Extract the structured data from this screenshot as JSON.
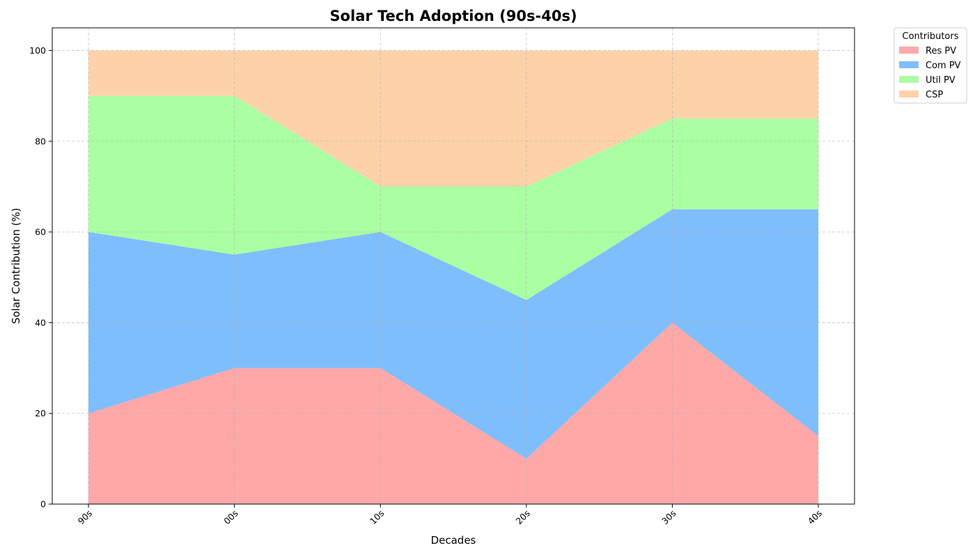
{
  "chart_data": {
    "type": "area",
    "stacked": true,
    "title": "Solar Tech Adoption (90s-40s)",
    "xlabel": "Decades",
    "ylabel": "Solar Contribution (%)",
    "categories": [
      "90s",
      "00s",
      "10s",
      "20s",
      "30s",
      "40s"
    ],
    "ylim": [
      0,
      105
    ],
    "yticks": [
      0,
      20,
      40,
      60,
      80,
      100
    ],
    "grid": true,
    "legend": {
      "title": "Contributors",
      "placement": "outside-top-right"
    },
    "series": [
      {
        "name": "Res PV",
        "color": "#ffa8a8",
        "values": [
          20,
          30,
          30,
          10,
          40,
          15
        ]
      },
      {
        "name": "Com PV",
        "color": "#7fbefc",
        "values": [
          40,
          25,
          30,
          35,
          25,
          50
        ]
      },
      {
        "name": "Util PV",
        "color": "#aaffa2",
        "values": [
          30,
          35,
          10,
          25,
          20,
          20
        ]
      },
      {
        "name": "CSP",
        "color": "#fed2a8",
        "values": [
          10,
          10,
          30,
          30,
          15,
          15
        ]
      }
    ]
  }
}
